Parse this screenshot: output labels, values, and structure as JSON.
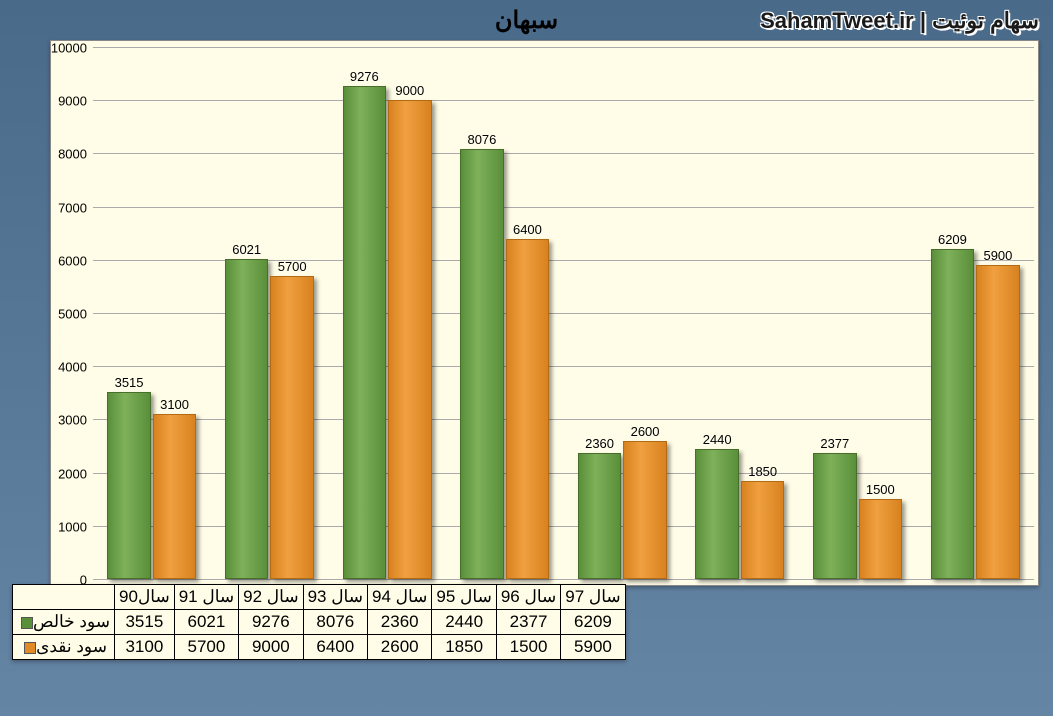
{
  "watermark": "سهام توئیت | SahamTweet.ir",
  "chart": {
    "type": "bar",
    "title": "سبهان",
    "background_color": "#fffde7",
    "page_gradient_top": "#4a6a8a",
    "page_gradient_bottom": "#6585a5",
    "y_axis": {
      "min": 0,
      "max": 10000,
      "step": 1000,
      "ticks": [
        0,
        1000,
        2000,
        3000,
        4000,
        5000,
        6000,
        7000,
        8000,
        9000,
        10000
      ],
      "grid_color": "#aaaaaa",
      "tick_fontsize": 13
    },
    "categories": [
      "سال90",
      "سال 91",
      "سال 92",
      "سال 93",
      "سال 94",
      "سال 95",
      "سال 96",
      "سال 97"
    ],
    "series": [
      {
        "name": "سود خالص",
        "color": "#5a8f3a",
        "border_color": "#476e2b",
        "values": [
          3515,
          6021,
          9276,
          8076,
          2360,
          2440,
          2377,
          6209
        ]
      },
      {
        "name": "سود نقدی",
        "color": "#e08a28",
        "border_color": "#b26a15",
        "values": [
          3100,
          5700,
          9000,
          6400,
          2600,
          1850,
          1500,
          5900
        ]
      }
    ],
    "bar_width_pct": 37,
    "bar_shadow": "3px 3px 4px rgba(0,0,0,0.4)",
    "label_fontsize": 13,
    "table_fontsize": 17
  }
}
